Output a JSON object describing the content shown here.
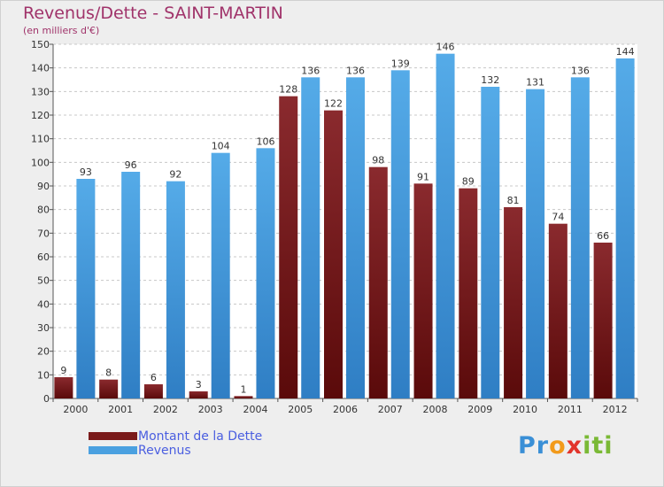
{
  "chart_data": {
    "type": "bar",
    "title": "Revenus/Dette - SAINT-MARTIN",
    "subtitle": "(en milliers d'€)",
    "categories": [
      "2000",
      "2001",
      "2002",
      "2003",
      "2004",
      "2005",
      "2006",
      "2007",
      "2008",
      "2009",
      "2010",
      "2011",
      "2012"
    ],
    "series": [
      {
        "name": "Montant de la Dette",
        "color": "#7a1a1a",
        "values": [
          9,
          8,
          6,
          3,
          1,
          128,
          122,
          98,
          91,
          89,
          81,
          74,
          66
        ]
      },
      {
        "name": "Revenus",
        "color": "#4aa0e0",
        "values": [
          93,
          96,
          92,
          104,
          106,
          136,
          136,
          139,
          146,
          132,
          131,
          136,
          144
        ]
      }
    ],
    "ylim": [
      0,
      150
    ],
    "yticks": [
      0,
      10,
      20,
      30,
      40,
      50,
      60,
      70,
      80,
      90,
      100,
      110,
      120,
      130,
      140,
      150
    ],
    "grid": true,
    "legend_position": "bottom-left"
  },
  "logo": {
    "p1": "Pr",
    "p2": "o",
    "p3": "x",
    "p4": "iti"
  }
}
